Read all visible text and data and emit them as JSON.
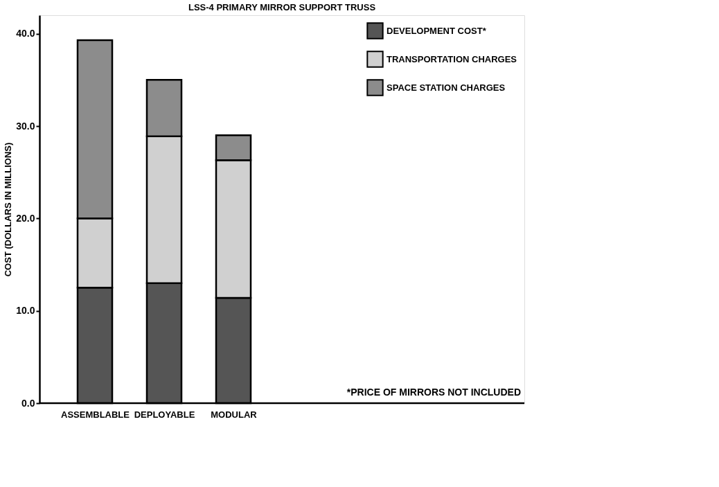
{
  "chart_data": {
    "type": "bar",
    "stacked": true,
    "title": "LSS-4 PRIMARY MIRROR SUPPORT TRUSS",
    "ylabel": "COST (DOLLARS IN MILLIONS)",
    "categories": [
      "ASSEMBLABLE",
      "DEPLOYABLE",
      "MODULAR"
    ],
    "series": [
      {
        "name": "DEVELOPMENT COST*",
        "color": "#555555",
        "values": [
          12.5,
          13.0,
          11.4
        ]
      },
      {
        "name": "TRANSPORTATION CHARGES",
        "color": "#d0d0d0",
        "values": [
          7.5,
          15.9,
          14.9
        ]
      },
      {
        "name": "SPACE STATION CHARGES",
        "color": "#8c8c8c",
        "values": [
          19.3,
          6.1,
          2.7
        ]
      }
    ],
    "ylim": [
      0,
      42
    ],
    "yticks": [
      {
        "value": 0,
        "label": "0.0"
      },
      {
        "value": 10,
        "label": "10.0"
      },
      {
        "value": 20,
        "label": "20.0"
      },
      {
        "value": 30,
        "label": "30.0"
      },
      {
        "value": 40,
        "label": "40.0"
      }
    ],
    "legend": "top right",
    "grid": false,
    "annotations": [
      "*PRICE OF MIRRORS NOT INCLUDED"
    ]
  }
}
